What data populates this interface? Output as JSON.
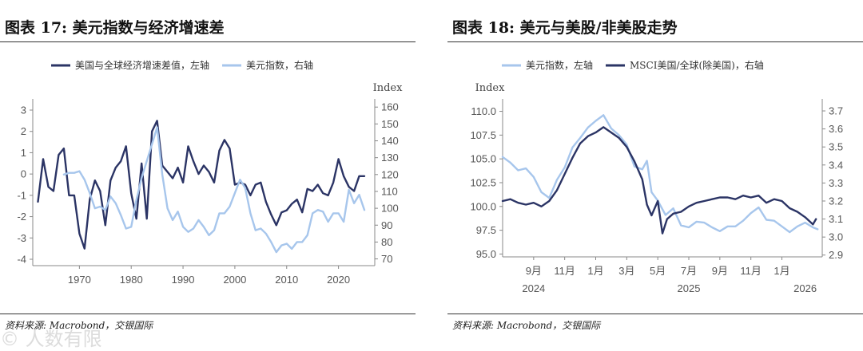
{
  "colors": {
    "dark": "#2b3465",
    "light": "#a7c6ec",
    "axis": "#888888"
  },
  "left": {
    "title": "图表 17: 美元指数与经济增速差",
    "source": "资料来源: Macrobond，交银国际",
    "chart_data": {
      "type": "line",
      "title": "图表 17: 美元指数与经济增速差",
      "legend": {
        "placement": "top",
        "entries": [
          "美国与全球经济增速差值，左轴",
          "美元指数，右轴"
        ]
      },
      "x_ticks": [
        "1970",
        "1980",
        "1990",
        "2000",
        "2010",
        "2020"
      ],
      "x_tick_values": [
        1970,
        1980,
        1990,
        2000,
        2010,
        2020
      ],
      "xlim": [
        1961,
        2027
      ],
      "y_left": {
        "ticks": [
          "3",
          "2",
          "1",
          "0",
          "-1",
          "-2",
          "-3",
          "-4"
        ],
        "lim": [
          -4.3,
          3.3
        ]
      },
      "y_right": {
        "ticks": [
          "160",
          "150",
          "140",
          "130",
          "120",
          "110",
          "100",
          "90",
          "80",
          "70"
        ],
        "lim": [
          66,
          162
        ],
        "title": "Index"
      },
      "series": [
        {
          "name": "美国与全球经济增速差值，左轴",
          "axis": "left",
          "color_key": "dark",
          "x": [
            1962,
            1963,
            1964,
            1965,
            1966,
            1967,
            1968,
            1969,
            1970,
            1971,
            1972,
            1973,
            1974,
            1975,
            1976,
            1977,
            1978,
            1979,
            1980,
            1981,
            1982,
            1983,
            1984,
            1985,
            1986,
            1987,
            1988,
            1989,
            1990,
            1991,
            1992,
            1993,
            1994,
            1995,
            1996,
            1997,
            1998,
            1999,
            2000,
            2001,
            2002,
            2003,
            2004,
            2005,
            2006,
            2007,
            2008,
            2009,
            2010,
            2011,
            2012,
            2013,
            2014,
            2015,
            2016,
            2017,
            2018,
            2019,
            2020,
            2021,
            2022,
            2023,
            2024,
            2025
          ],
          "values": [
            -1.3,
            0.7,
            -0.6,
            -0.8,
            0.9,
            1.2,
            -1.0,
            -1.0,
            -2.8,
            -3.5,
            -1.2,
            -0.3,
            -0.8,
            -2.4,
            -0.3,
            0.3,
            0.6,
            1.3,
            -0.9,
            -2.1,
            0.5,
            -2.1,
            2.0,
            2.5,
            0.4,
            0.1,
            -0.2,
            0.3,
            -0.4,
            1.3,
            0.6,
            0.0,
            0.4,
            0.1,
            -0.4,
            1.1,
            1.6,
            1.2,
            -0.5,
            -0.4,
            -0.5,
            -1.0,
            -0.5,
            -0.4,
            -1.3,
            -1.9,
            -2.4,
            -1.8,
            -1.7,
            -1.4,
            -1.2,
            -1.8,
            -0.7,
            -0.8,
            -0.5,
            -0.9,
            -1.0,
            -0.4,
            0.7,
            -0.1,
            -0.6,
            -0.8,
            -0.1,
            -0.1
          ]
        },
        {
          "name": "美元指数，右轴",
          "axis": "right",
          "color_key": "light",
          "x": [
            1967,
            1968,
            1969,
            1970,
            1971,
            1972,
            1973,
            1974,
            1975,
            1976,
            1977,
            1978,
            1979,
            1980,
            1981,
            1982,
            1983,
            1984,
            1985,
            1986,
            1987,
            1988,
            1989,
            1990,
            1991,
            1992,
            1993,
            1994,
            1995,
            1996,
            1997,
            1998,
            1999,
            2000,
            2001,
            2002,
            2003,
            2004,
            2005,
            2006,
            2007,
            2008,
            2009,
            2010,
            2011,
            2012,
            2013,
            2014,
            2015,
            2016,
            2017,
            2018,
            2019,
            2020,
            2021,
            2022,
            2023,
            2024,
            2025
          ],
          "values": [
            120,
            121,
            121,
            122,
            117,
            109,
            100,
            101,
            99,
            107,
            103,
            96,
            88,
            89,
            105,
            118,
            128,
            138,
            148,
            120,
            100,
            93,
            98,
            89,
            86,
            88,
            93,
            89,
            84,
            87,
            97,
            97,
            101,
            109,
            117,
            112,
            97,
            87,
            88,
            85,
            80,
            74,
            78,
            79,
            76,
            80,
            80,
            84,
            97,
            99,
            98,
            92,
            97,
            97,
            92,
            111,
            103,
            108,
            99
          ]
        }
      ]
    }
  },
  "right": {
    "title": "图表 18: 美元与美股/非美股走势",
    "source": "资料来源: Macrobond，交银国际",
    "chart_data": {
      "type": "line",
      "title": "图表 18: 美元与美股/非美股走势",
      "legend": {
        "placement": "top",
        "entries": [
          "美元指数，左轴",
          "MSCI美国/全球(除美国)，右轴"
        ]
      },
      "x_ticks": [
        "9月",
        "11月",
        "1月",
        "3月",
        "5月",
        "7月",
        "9月",
        "11月",
        "1月"
      ],
      "x_tick_values": [
        8,
        10,
        12,
        14,
        16,
        18,
        20,
        22,
        24
      ],
      "year_labels": [
        {
          "label": "2024",
          "x": 8
        },
        {
          "label": "2025",
          "x": 18
        },
        {
          "label": "2026",
          "x": 25.5
        }
      ],
      "xlim": [
        6,
        26.6
      ],
      "y_left": {
        "ticks": [
          "110.0",
          "107.5",
          "105.0",
          "102.5",
          "100.0",
          "97.5",
          "95.0"
        ],
        "lim": [
          94.7,
          110.8
        ],
        "title": "Index"
      },
      "y_right": {
        "ticks": [
          "3.7",
          "3.6",
          "3.5",
          "3.4",
          "3.3",
          "3.2",
          "3.1",
          "3.0",
          "2.9"
        ],
        "lim": [
          2.89,
          3.74
        ]
      },
      "series": [
        {
          "name": "美元指数，左轴",
          "axis": "left",
          "color_key": "light",
          "x": [
            6,
            6.5,
            7,
            7.5,
            8,
            8.5,
            9,
            9.5,
            10,
            10.5,
            11,
            11.5,
            12,
            12.5,
            13,
            13.5,
            14,
            14.5,
            15,
            15.3,
            15.6,
            16,
            16.5,
            17,
            17.5,
            18,
            18.5,
            19,
            19.5,
            20,
            20.5,
            21,
            21.5,
            22,
            22.5,
            23,
            23.5,
            24,
            24.5,
            25,
            25.5,
            26,
            26.3
          ],
          "values": [
            105.2,
            104.6,
            103.8,
            104.0,
            103.1,
            101.5,
            100.9,
            102.8,
            104.1,
            106.2,
            107.2,
            108.3,
            109.0,
            109.6,
            108.2,
            107.5,
            106.5,
            104.2,
            103.9,
            104.8,
            101.5,
            100.6,
            99.1,
            99.8,
            98.0,
            97.8,
            98.4,
            98.3,
            97.8,
            97.4,
            97.9,
            97.9,
            98.5,
            99.3,
            99.9,
            98.6,
            98.5,
            97.9,
            97.3,
            97.9,
            98.3,
            97.8,
            97.6
          ]
        },
        {
          "name": "MSCI美国/全球(除美国)，右轴",
          "axis": "right",
          "color_key": "dark",
          "x": [
            6,
            6.5,
            7,
            7.5,
            8,
            8.5,
            9,
            9.5,
            10,
            10.5,
            11,
            11.5,
            12,
            12.5,
            13,
            13.5,
            14,
            14.5,
            15,
            15.3,
            15.6,
            16,
            16.3,
            16.6,
            17,
            17.5,
            18,
            18.5,
            19,
            19.5,
            20,
            20.5,
            21,
            21.5,
            22,
            22.5,
            23,
            23.5,
            24,
            24.5,
            25,
            25.5,
            26,
            26.2
          ],
          "values": [
            3.2,
            3.21,
            3.19,
            3.18,
            3.19,
            3.17,
            3.2,
            3.26,
            3.35,
            3.44,
            3.52,
            3.56,
            3.58,
            3.61,
            3.58,
            3.55,
            3.5,
            3.42,
            3.32,
            3.18,
            3.12,
            3.2,
            3.02,
            3.1,
            3.13,
            3.14,
            3.17,
            3.19,
            3.2,
            3.21,
            3.22,
            3.22,
            3.21,
            3.23,
            3.22,
            3.23,
            3.19,
            3.21,
            3.2,
            3.16,
            3.14,
            3.11,
            3.07,
            3.1
          ]
        }
      ]
    }
  },
  "watermark": "© 人数有限"
}
